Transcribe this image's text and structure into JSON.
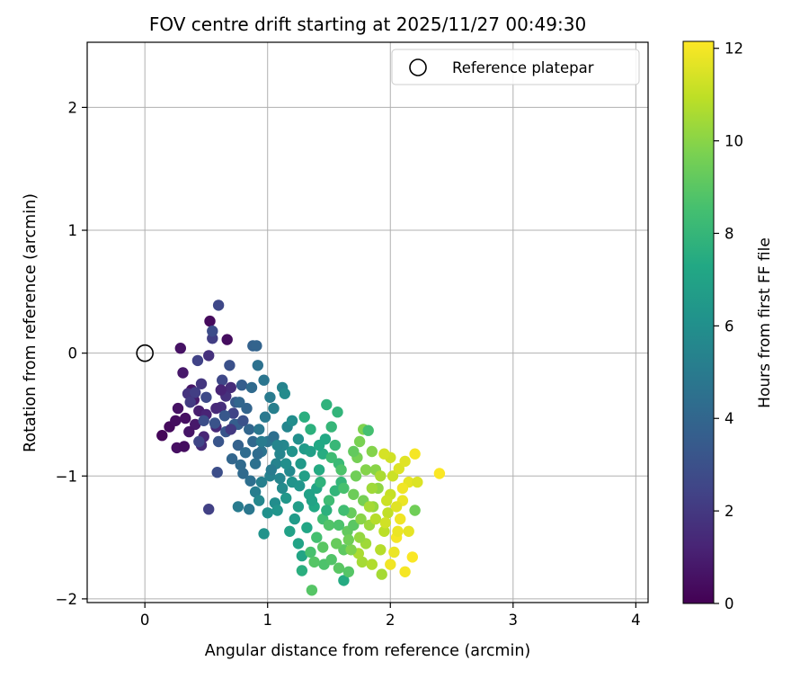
{
  "chart_data": {
    "type": "scatter",
    "title": "FOV centre drift starting at 2025/11/27 00:49:30",
    "xlabel": "Angular distance from reference (arcmin)",
    "ylabel": "Rotation from reference (arcmin)",
    "xlim": [
      -0.47,
      4.1
    ],
    "ylim": [
      -2.03,
      2.53
    ],
    "xticks": [
      0,
      1,
      2,
      3,
      4
    ],
    "yticks": [
      -2,
      -1,
      0,
      1,
      2
    ],
    "xtick_labels": [
      "0",
      "1",
      "2",
      "3",
      "4"
    ],
    "ytick_labels": [
      "−2",
      "−1",
      "0",
      "1",
      "2"
    ],
    "grid": true,
    "legend": {
      "placement": "top-right",
      "entries": [
        {
          "label": "Reference platepar",
          "marker": "open-circle",
          "color": "#000000"
        }
      ]
    },
    "reference_point": {
      "x": 0,
      "y": 0
    },
    "colorbar": {
      "label": "Hours from first FF file",
      "colormap": "viridis",
      "min": 0,
      "max": 12.15,
      "ticks": [
        0,
        2,
        4,
        6,
        8,
        10,
        12
      ],
      "tick_labels": [
        "0",
        "2",
        "4",
        "6",
        "8",
        "10",
        "12"
      ],
      "stops": [
        "#440154",
        "#482475",
        "#414487",
        "#355f8d",
        "#2a788e",
        "#21918c",
        "#22a884",
        "#44bf70",
        "#7ad151",
        "#bddf26",
        "#fde725"
      ]
    },
    "series": [
      {
        "points": [
          [
            0.14,
            -0.67,
            0.2
          ],
          [
            0.2,
            -0.6,
            0.3
          ],
          [
            0.25,
            -0.55,
            0.4
          ],
          [
            0.26,
            -0.77,
            0.5
          ],
          [
            0.32,
            -0.76,
            0.4
          ],
          [
            0.27,
            -0.45,
            0.6
          ],
          [
            0.33,
            -0.53,
            0.5
          ],
          [
            0.31,
            -0.16,
            0.8
          ],
          [
            0.29,
            0.04,
            0.6
          ],
          [
            0.38,
            -0.3,
            0.7
          ],
          [
            0.4,
            -0.38,
            0.9
          ],
          [
            0.44,
            -0.47,
            1.0
          ],
          [
            0.41,
            -0.58,
            0.8
          ],
          [
            0.36,
            -0.64,
            0.7
          ],
          [
            0.53,
            0.26,
            0.3
          ],
          [
            0.67,
            0.11,
            0.4
          ],
          [
            0.5,
            -0.5,
            1.2
          ],
          [
            0.48,
            -0.68,
            1.3
          ],
          [
            0.46,
            -0.75,
            1.5
          ],
          [
            0.58,
            -0.6,
            1.4
          ],
          [
            0.62,
            -0.44,
            1.6
          ],
          [
            0.66,
            -0.35,
            1.7
          ],
          [
            0.7,
            -0.28,
            1.5
          ],
          [
            0.35,
            -0.33,
            1.8
          ],
          [
            0.46,
            -0.25,
            1.9
          ],
          [
            0.52,
            -0.02,
            1.7
          ],
          [
            0.55,
            0.12,
            2.2
          ],
          [
            0.43,
            -0.06,
            2.4
          ],
          [
            0.6,
            0.39,
            2.6
          ],
          [
            0.55,
            0.18,
            2.8
          ],
          [
            0.52,
            -1.27,
            2.3
          ],
          [
            0.44,
            -0.72,
            2.5
          ],
          [
            0.5,
            -0.36,
            2.7
          ],
          [
            0.59,
            -0.97,
            2.9
          ],
          [
            0.72,
            -0.49,
            2.4
          ],
          [
            0.63,
            -0.22,
            2.6
          ],
          [
            0.37,
            -0.4,
            2.1
          ],
          [
            0.41,
            -0.32,
            2.2
          ],
          [
            0.48,
            -0.55,
            2.9
          ],
          [
            0.69,
            -0.1,
            3.0
          ],
          [
            0.57,
            -0.57,
            3.1
          ],
          [
            0.6,
            -0.72,
            3.2
          ],
          [
            0.65,
            -0.51,
            3.3
          ],
          [
            0.74,
            -0.4,
            3.4
          ],
          [
            0.76,
            -0.58,
            3.5
          ],
          [
            0.79,
            -0.26,
            3.6
          ],
          [
            0.66,
            -0.64,
            3.2
          ],
          [
            0.73,
            -0.58,
            3.6
          ],
          [
            0.88,
            0.06,
            3.8
          ],
          [
            0.91,
            0.06,
            3.9
          ],
          [
            0.83,
            -0.45,
            3.9
          ],
          [
            0.85,
            -0.62,
            4.0
          ],
          [
            0.88,
            -0.72,
            4.1
          ],
          [
            0.76,
            -0.75,
            3.8
          ],
          [
            0.71,
            -0.86,
            4.0
          ],
          [
            0.78,
            -0.91,
            4.2
          ],
          [
            0.82,
            -0.81,
            4.3
          ],
          [
            0.86,
            -1.04,
            4.4
          ],
          [
            0.8,
            -0.98,
            4.2
          ],
          [
            0.9,
            -0.9,
            4.5
          ],
          [
            0.95,
            -0.8,
            4.6
          ],
          [
            1.0,
            -0.72,
            4.7
          ],
          [
            1.05,
            -0.68,
            4.4
          ],
          [
            0.93,
            -0.62,
            4.8
          ],
          [
            0.98,
            -0.52,
            4.9
          ],
          [
            0.87,
            -0.28,
            4.2
          ],
          [
            0.92,
            -0.1,
            4.5
          ],
          [
            0.97,
            -0.22,
            4.7
          ],
          [
            0.77,
            -0.4,
            4.0
          ],
          [
            0.85,
            -1.27,
            4.8
          ],
          [
            0.76,
            -1.25,
            5.0
          ],
          [
            0.9,
            -1.13,
            5.1
          ],
          [
            0.95,
            -1.05,
            5.2
          ],
          [
            1.02,
            -1.0,
            5.3
          ],
          [
            1.07,
            -0.9,
            5.4
          ],
          [
            1.1,
            -0.82,
            5.5
          ],
          [
            1.13,
            -0.75,
            5.6
          ],
          [
            1.16,
            -0.6,
            5.5
          ],
          [
            1.05,
            -0.45,
            5.2
          ],
          [
            1.02,
            -0.36,
            5.0
          ],
          [
            1.12,
            -0.28,
            5.4
          ],
          [
            1.14,
            -0.33,
            5.8
          ],
          [
            1.2,
            -0.55,
            5.9
          ],
          [
            1.25,
            -0.7,
            6.0
          ],
          [
            1.18,
            -0.96,
            5.7
          ],
          [
            1.12,
            -1.1,
            5.8
          ],
          [
            1.06,
            -1.22,
            5.9
          ],
          [
            1.0,
            -1.3,
            6.1
          ],
          [
            0.93,
            -1.2,
            5.6
          ],
          [
            0.97,
            -1.47,
            6.2
          ],
          [
            1.08,
            -1.28,
            6.3
          ],
          [
            1.15,
            -1.18,
            6.4
          ],
          [
            1.2,
            -1.05,
            6.2
          ],
          [
            1.27,
            -0.9,
            6.5
          ],
          [
            1.3,
            -0.78,
            6.6
          ],
          [
            1.35,
            -0.8,
            6.8
          ],
          [
            1.22,
            -1.35,
            6.6
          ],
          [
            1.18,
            -1.45,
            6.9
          ],
          [
            1.25,
            -1.55,
            7.0
          ],
          [
            1.28,
            -1.65,
            7.1
          ],
          [
            1.32,
            -1.42,
            7.2
          ],
          [
            1.38,
            -1.25,
            7.3
          ],
          [
            1.4,
            -1.1,
            7.1
          ],
          [
            1.42,
            -0.95,
            7.4
          ],
          [
            1.45,
            -0.82,
            7.5
          ],
          [
            1.47,
            -0.7,
            7.3
          ],
          [
            1.3,
            -0.52,
            7.6
          ],
          [
            1.35,
            -0.62,
            7.7
          ],
          [
            1.48,
            -0.42,
            7.8
          ],
          [
            1.57,
            -0.48,
            7.9
          ],
          [
            1.52,
            -0.6,
            8.0
          ],
          [
            1.55,
            -0.75,
            8.1
          ],
          [
            1.58,
            -0.9,
            8.2
          ],
          [
            1.6,
            -1.05,
            8.0
          ],
          [
            1.5,
            -1.2,
            8.3
          ],
          [
            1.45,
            -1.35,
            8.4
          ],
          [
            1.4,
            -1.5,
            8.5
          ],
          [
            1.35,
            -1.62,
            8.6
          ],
          [
            1.28,
            -1.77,
            7.6
          ],
          [
            1.36,
            -1.93,
            8.9
          ],
          [
            1.46,
            -1.72,
            8.7
          ],
          [
            1.52,
            -1.68,
            8.8
          ],
          [
            1.58,
            -1.75,
            9.0
          ],
          [
            1.62,
            -1.85,
            7.4
          ],
          [
            1.66,
            -1.78,
            8.9
          ],
          [
            1.62,
            -1.6,
            9.1
          ],
          [
            1.65,
            -1.45,
            9.2
          ],
          [
            1.68,
            -1.3,
            9.3
          ],
          [
            1.7,
            -1.15,
            9.4
          ],
          [
            1.72,
            -1.0,
            9.5
          ],
          [
            1.73,
            -0.85,
            9.6
          ],
          [
            1.75,
            -0.72,
            9.7
          ],
          [
            1.78,
            -0.62,
            9.8
          ],
          [
            1.82,
            -0.63,
            8.5
          ],
          [
            1.85,
            -0.8,
            9.9
          ],
          [
            1.88,
            -0.95,
            10.0
          ],
          [
            1.9,
            -1.1,
            10.1
          ],
          [
            1.86,
            -1.25,
            10.2
          ],
          [
            1.83,
            -1.4,
            10.3
          ],
          [
            1.8,
            -1.55,
            10.4
          ],
          [
            1.77,
            -1.7,
            10.5
          ],
          [
            1.74,
            -1.63,
            10.6
          ],
          [
            1.85,
            -1.72,
            10.7
          ],
          [
            1.92,
            -1.6,
            10.8
          ],
          [
            1.95,
            -1.45,
            10.9
          ],
          [
            1.98,
            -1.3,
            11.0
          ],
          [
            2.0,
            -1.15,
            11.1
          ],
          [
            2.02,
            -1.0,
            11.2
          ],
          [
            2.0,
            -0.85,
            11.3
          ],
          [
            1.95,
            -0.82,
            11.4
          ],
          [
            2.07,
            -0.94,
            11.5
          ],
          [
            2.12,
            -0.88,
            11.6
          ],
          [
            2.15,
            -1.05,
            11.7
          ],
          [
            2.1,
            -1.2,
            11.8
          ],
          [
            2.08,
            -1.35,
            11.9
          ],
          [
            2.05,
            -1.5,
            12.0
          ],
          [
            2.03,
            -1.62,
            11.8
          ],
          [
            2.0,
            -1.72,
            11.9
          ],
          [
            2.12,
            -1.78,
            12.0
          ],
          [
            2.18,
            -1.66,
            12.1
          ],
          [
            2.15,
            -1.45,
            11.7
          ],
          [
            2.2,
            -1.28,
            9.5
          ],
          [
            2.22,
            -1.05,
            11.5
          ],
          [
            2.2,
            -0.82,
            12.0
          ],
          [
            2.4,
            -0.98,
            12.1
          ],
          [
            1.93,
            -1.8,
            10.5
          ],
          [
            1.55,
            -1.12,
            7.9
          ],
          [
            1.62,
            -1.28,
            8.4
          ],
          [
            1.7,
            -1.4,
            9.0
          ],
          [
            1.78,
            -1.2,
            9.6
          ],
          [
            1.6,
            -0.95,
            8.7
          ],
          [
            1.52,
            -0.85,
            8.3
          ],
          [
            1.43,
            -1.05,
            7.8
          ],
          [
            1.36,
            -1.2,
            7.0
          ],
          [
            1.25,
            -1.25,
            6.7
          ],
          [
            1.15,
            -0.9,
            6.0
          ],
          [
            1.08,
            -0.75,
            5.5
          ],
          [
            0.95,
            -0.72,
            5.0
          ],
          [
            1.2,
            -0.8,
            6.2
          ],
          [
            1.3,
            -1.0,
            6.8
          ],
          [
            1.42,
            -0.75,
            7.3
          ],
          [
            1.7,
            -0.8,
            9.2
          ],
          [
            1.8,
            -0.95,
            9.9
          ],
          [
            1.92,
            -1.0,
            10.6
          ],
          [
            1.97,
            -1.2,
            11.2
          ],
          [
            1.88,
            -1.35,
            10.8
          ],
          [
            1.75,
            -1.5,
            10.2
          ],
          [
            1.68,
            -1.6,
            9.8
          ],
          [
            1.56,
            -1.55,
            9.3
          ],
          [
            1.5,
            -1.4,
            8.8
          ],
          [
            1.45,
            -1.58,
            9.0
          ],
          [
            1.38,
            -1.7,
            8.9
          ],
          [
            1.62,
            -1.1,
            8.6
          ],
          [
            1.85,
            -1.1,
            10.4
          ],
          [
            2.05,
            -1.25,
            11.6
          ],
          [
            2.1,
            -1.1,
            11.9
          ],
          [
            0.62,
            -0.3,
            1.2
          ],
          [
            0.58,
            -0.45,
            1.4
          ],
          [
            0.7,
            -0.62,
            2.0
          ],
          [
            0.8,
            -0.55,
            3.0
          ],
          [
            0.92,
            -0.82,
            4.3
          ],
          [
            1.03,
            -0.95,
            5.0
          ],
          [
            1.1,
            -1.02,
            5.5
          ],
          [
            1.26,
            -1.08,
            6.3
          ],
          [
            1.34,
            -1.15,
            6.9
          ],
          [
            1.48,
            -1.28,
            7.7
          ],
          [
            1.58,
            -1.4,
            8.7
          ],
          [
            1.66,
            -1.52,
            9.5
          ],
          [
            1.76,
            -1.35,
            10.0
          ],
          [
            1.83,
            -1.25,
            10.5
          ],
          [
            1.96,
            -1.38,
            11.3
          ],
          [
            2.06,
            -1.45,
            11.8
          ]
        ]
      }
    ]
  }
}
